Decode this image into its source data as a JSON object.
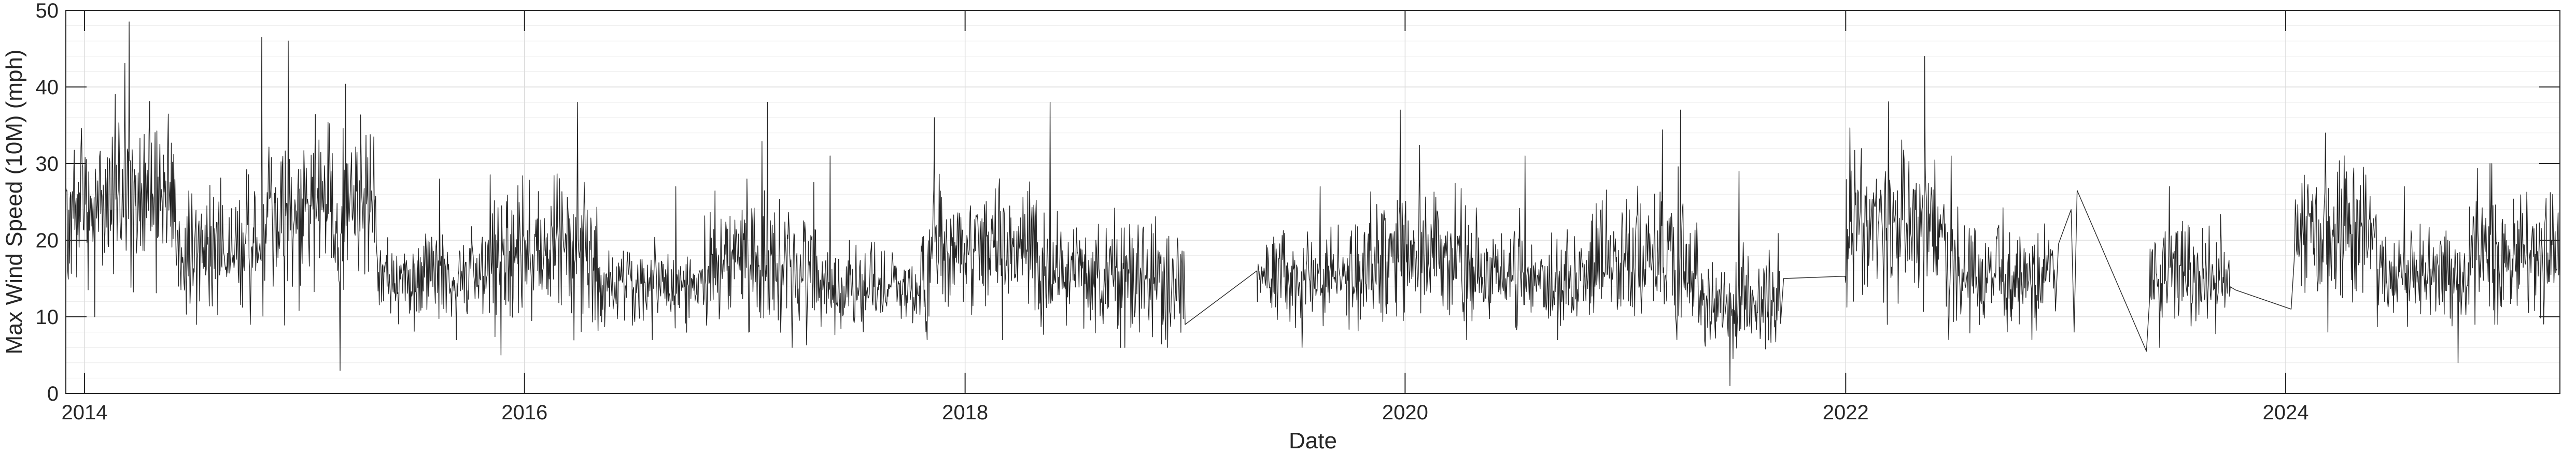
{
  "chart_data": {
    "type": "line",
    "title": "",
    "xlabel": "Date",
    "ylabel": "Max Wind Speed (10M) (mph)",
    "xlim": [
      "2013-12-01",
      "2025-03-31"
    ],
    "ylim": [
      0,
      50
    ],
    "x_ticks": [
      "2014",
      "2016",
      "2018",
      "2020",
      "2022",
      "2024"
    ],
    "y_ticks": [
      0,
      10,
      20,
      30,
      40,
      50
    ],
    "y_minor_step": 2,
    "grid": true,
    "legend": "none",
    "series": [
      {
        "color": "#262626",
        "segments": [
          {
            "start": "2013-12-01",
            "end": "2014-05-31",
            "mean": 26,
            "amp": 9,
            "min": 10,
            "peak": 48.5
          },
          {
            "start": "2014-06-01",
            "end": "2014-10-31",
            "mean": 19,
            "amp": 7,
            "min": 9,
            "peak": 46.5
          },
          {
            "start": "2014-11-01",
            "end": "2015-04-30",
            "mean": 24,
            "amp": 10,
            "min": 3,
            "peak": 46
          },
          {
            "start": "2015-05-01",
            "end": "2015-10-31",
            "mean": 15,
            "amp": 5,
            "min": 7,
            "peak": 28
          },
          {
            "start": "2015-11-01",
            "end": "2016-04-30",
            "mean": 18,
            "amp": 7,
            "min": 5,
            "peak": 38
          },
          {
            "start": "2016-05-01",
            "end": "2016-10-31",
            "mean": 14,
            "amp": 4.5,
            "min": 7,
            "peak": 27
          },
          {
            "start": "2016-11-01",
            "end": "2017-04-30",
            "mean": 17,
            "amp": 7,
            "min": 6,
            "peak": 38
          },
          {
            "start": "2017-05-01",
            "end": "2017-10-31",
            "mean": 14,
            "amp": 5,
            "min": 7,
            "peak": 31
          },
          {
            "start": "2017-11-01",
            "end": "2018-04-30",
            "mean": 19,
            "amp": 7,
            "min": 7,
            "peak": 36
          },
          {
            "start": "2018-05-01",
            "end": "2018-12-31",
            "mean": 15,
            "amp": 6,
            "min": 6,
            "peak": 38
          },
          {
            "start": "2019-05-01",
            "end": "2019-10-31",
            "mean": 15,
            "amp": 5,
            "min": 6,
            "peak": 27
          },
          {
            "start": "2019-11-01",
            "end": "2020-04-30",
            "mean": 18,
            "amp": 7,
            "min": 7,
            "peak": 37
          },
          {
            "start": "2020-05-01",
            "end": "2020-10-31",
            "mean": 15,
            "amp": 5,
            "min": 7,
            "peak": 31
          },
          {
            "start": "2020-11-01",
            "end": "2021-04-30",
            "mean": 17,
            "amp": 7,
            "min": 7,
            "peak": 37
          },
          {
            "start": "2021-05-01",
            "end": "2021-09-15",
            "mean": 12,
            "amp": 5,
            "min": 1,
            "peak": 29
          },
          {
            "start": "2022-01-01",
            "end": "2022-06-15",
            "mean": 22,
            "amp": 8,
            "min": 9,
            "peak": 44
          },
          {
            "start": "2022-06-16",
            "end": "2022-12-15",
            "mean": 15,
            "amp": 6,
            "min": 7,
            "peak": 31
          },
          {
            "start": "2023-05-20",
            "end": "2023-10-01",
            "mean": 15,
            "amp": 5,
            "min": 6,
            "peak": 27
          },
          {
            "start": "2024-01-15",
            "end": "2024-05-31",
            "mean": 21,
            "amp": 7,
            "min": 8,
            "peak": 34
          },
          {
            "start": "2024-06-01",
            "end": "2024-10-31",
            "mean": 15,
            "amp": 5,
            "min": 4,
            "peak": 27
          },
          {
            "start": "2024-11-01",
            "end": "2025-03-31",
            "mean": 18,
            "amp": 7,
            "min": 9,
            "peak": 30
          }
        ],
        "points": [
          {
            "x": "2019-01-01",
            "y": 9
          },
          {
            "x": "2019-04-30",
            "y": 16
          },
          {
            "x": "2021-09-20",
            "y": 15
          },
          {
            "x": "2021-12-31",
            "y": 15.3
          },
          {
            "x": "2022-12-20",
            "y": 19.5
          },
          {
            "x": "2023-01-10",
            "y": 24
          },
          {
            "x": "2023-01-15",
            "y": 8
          },
          {
            "x": "2023-01-20",
            "y": 26.5
          },
          {
            "x": "2023-05-15",
            "y": 5.5
          },
          {
            "x": "2023-10-10",
            "y": 13.5
          },
          {
            "x": "2024-01-10",
            "y": 11
          }
        ]
      }
    ]
  }
}
